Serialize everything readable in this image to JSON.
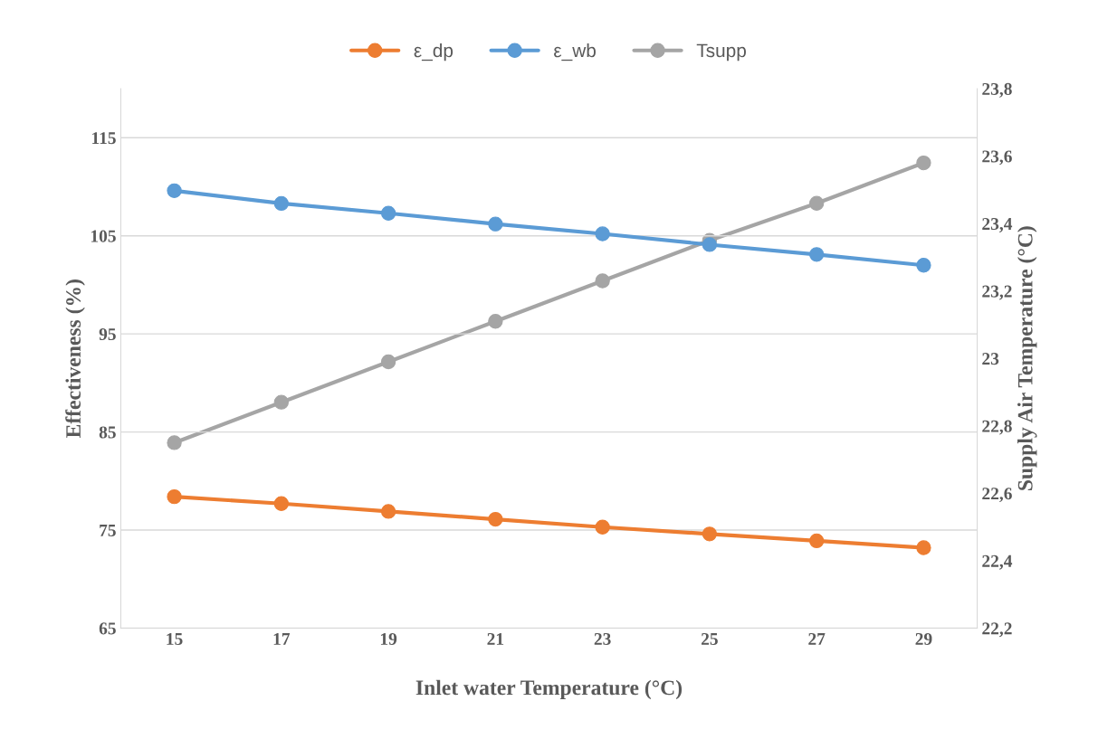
{
  "chart_data": {
    "type": "line",
    "xlabel": "Inlet water Temperature (°C)",
    "ylabel": "Effectiveness (%)",
    "y2label": "Supply Air Temperature (°C)",
    "categories": [
      "15",
      "17",
      "19",
      "21",
      "23",
      "25",
      "27",
      "29"
    ],
    "series": [
      {
        "name": "ε_dp",
        "color": "#ed7d31",
        "values": [
          78.4,
          77.7,
          76.9,
          76.1,
          75.3,
          74.6,
          73.9,
          73.2
        ]
      },
      {
        "name": "ε_wb",
        "color": "#5b9bd5",
        "values": [
          109.6,
          108.3,
          107.3,
          106.2,
          105.2,
          104.1,
          103.1,
          102.0
        ]
      },
      {
        "name": "Tsupp",
        "color": "#a5a5a5",
        "axis": "y2",
        "values": [
          22.75,
          22.87,
          22.99,
          23.11,
          23.23,
          23.35,
          23.46,
          23.58
        ]
      }
    ],
    "ylim": [
      65,
      120
    ],
    "yticks": [
      65,
      75,
      85,
      95,
      105,
      115
    ],
    "y2lim": [
      22.2,
      23.8
    ],
    "y2ticks": [
      {
        "value": 22.2,
        "label": "22,2"
      },
      {
        "value": 22.4,
        "label": "22,4"
      },
      {
        "value": 22.6,
        "label": "22,6"
      },
      {
        "value": 22.8,
        "label": "22,8"
      },
      23,
      {
        "value": 23.2,
        "label": "23,2"
      },
      {
        "value": 23.4,
        "label": "23,4"
      },
      {
        "value": 23.6,
        "label": "23,6"
      },
      {
        "value": 23.8,
        "label": "23,8"
      }
    ],
    "grid": "y",
    "legend": "top",
    "marker": "circle",
    "line_style": "solid"
  }
}
